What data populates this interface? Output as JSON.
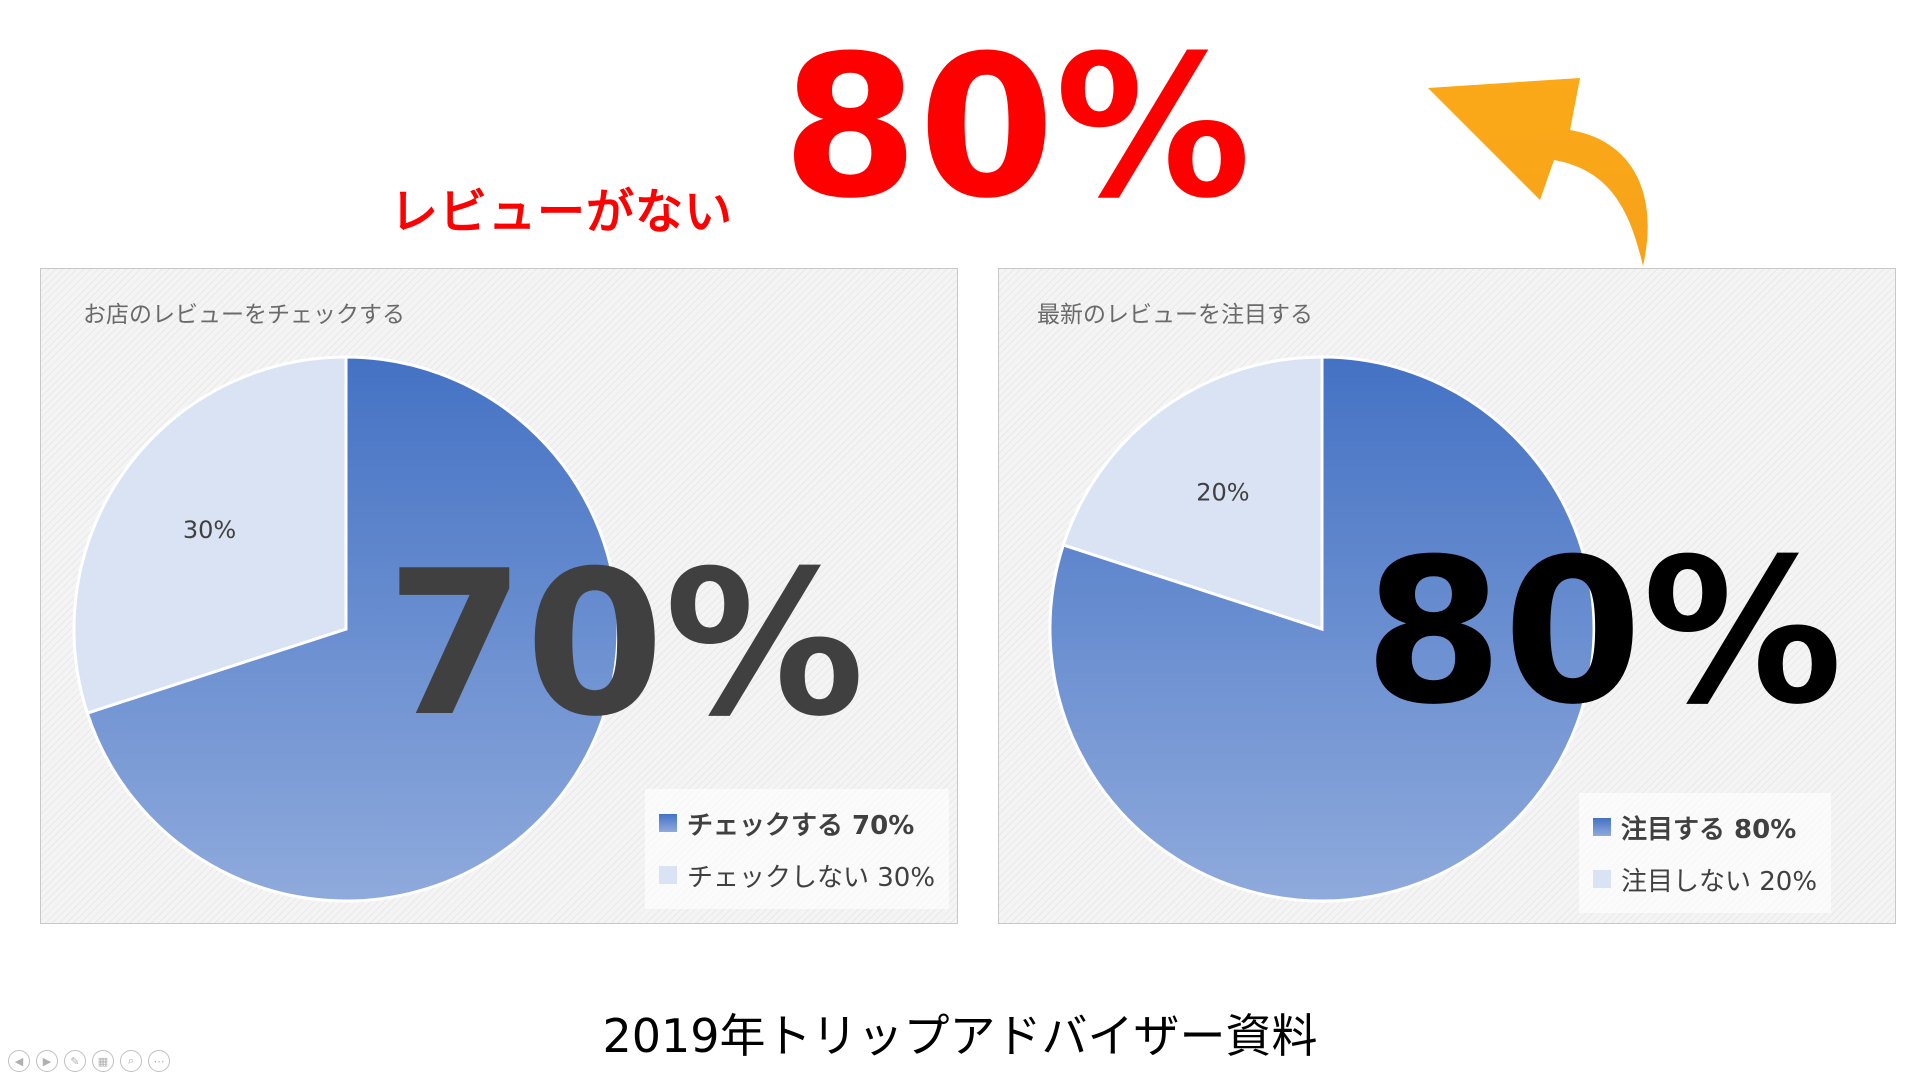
{
  "headline": {
    "label": "レビューがない",
    "value": "80%"
  },
  "colors": {
    "accent": "#ff0000",
    "arrow": "#fba918",
    "slice_main_top": "#4472c4",
    "slice_main_bottom": "#8faadc",
    "slice_other": "#dae3f3"
  },
  "chart_data": [
    {
      "type": "pie",
      "title": "お店のレビューをチェックする",
      "categories": [
        "チェックする",
        "チェックしない"
      ],
      "values": [
        70,
        30
      ],
      "data_labels": [
        "",
        "30%"
      ],
      "overlay_text": "70%",
      "legend": {
        "placement": "bottom-right",
        "items": [
          "チェックする 70%",
          "チェックしない 30%"
        ]
      }
    },
    {
      "type": "pie",
      "title": "最新のレビューを注目する",
      "categories": [
        "注目する",
        "注目しない"
      ],
      "values": [
        80,
        20
      ],
      "data_labels": [
        "",
        "20%"
      ],
      "overlay_text": "80%",
      "legend": {
        "placement": "bottom-right",
        "items": [
          "注目する 80%",
          "注目しない 20%"
        ]
      }
    }
  ],
  "source": "2019年トリップアドバイザー資料",
  "nav": {
    "icons": [
      "previous-icon",
      "next-icon",
      "pen-icon",
      "slides-icon",
      "zoom-icon",
      "more-icon"
    ],
    "glyphs": [
      "◀",
      "▶",
      "✎",
      "▦",
      "⌕",
      "⋯"
    ]
  }
}
